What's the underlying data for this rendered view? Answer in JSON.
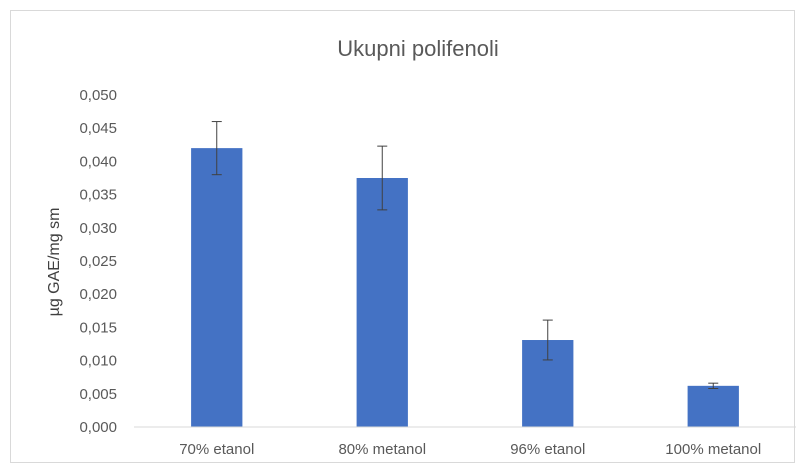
{
  "chart_data": {
    "type": "bar",
    "title": "Ukupni polifenoli",
    "xlabel": "",
    "ylabel": "µg GAE/mg sm",
    "categories": [
      "70% etanol",
      "80% metanol",
      "96% etanol",
      "100% metanol"
    ],
    "values": [
      0.042,
      0.0375,
      0.0131,
      0.0062
    ],
    "error_bars": [
      0.004,
      0.0048,
      0.003,
      0.0004
    ],
    "ylim": [
      0,
      0.05
    ],
    "yticks": [
      "0,000",
      "0,005",
      "0,010",
      "0,015",
      "0,020",
      "0,025",
      "0,030",
      "0,035",
      "0,040",
      "0,045",
      "0,050"
    ],
    "bar_color": "#4472c4",
    "grid": false,
    "legend": "none"
  }
}
